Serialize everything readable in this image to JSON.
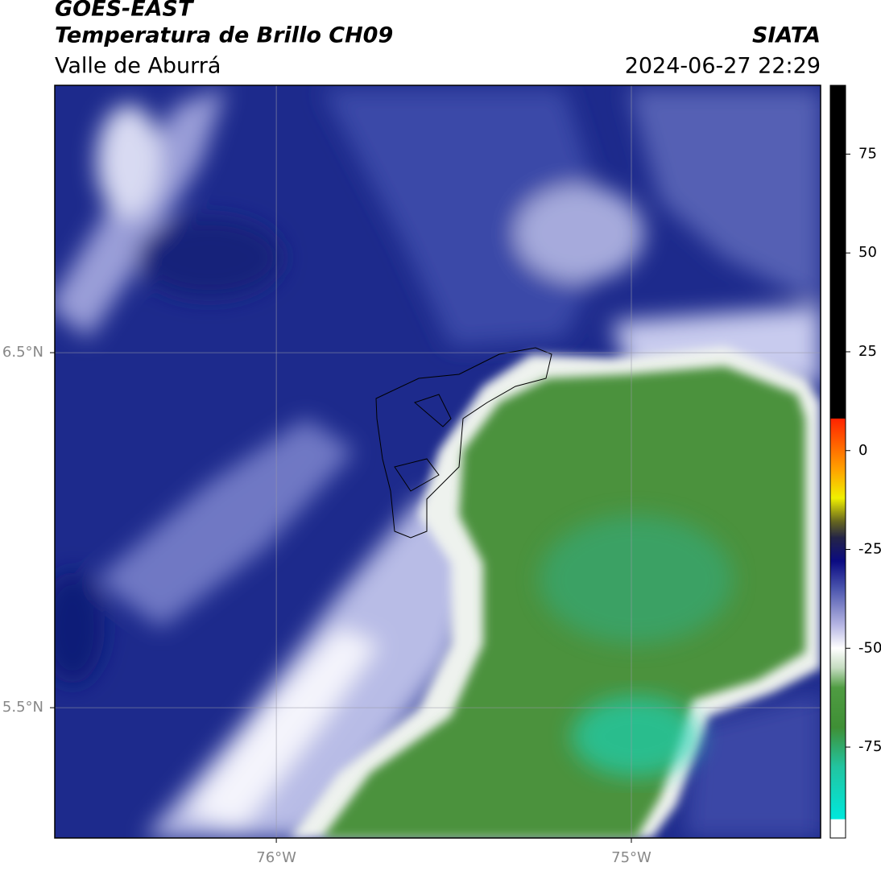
{
  "header": {
    "title": "GOES-EAST",
    "subtitle": "Temperatura de Brillo CH09",
    "region": "Valle de Aburrá",
    "agency": "SIATA",
    "datetime": "2024-06-27 22:29"
  },
  "map": {
    "xlim": [
      -76.624,
      -74.467
    ],
    "ylim": [
      5.133,
      7.253
    ],
    "xticks": [
      {
        "value": -76,
        "label": "76°W"
      },
      {
        "value": -75,
        "label": "75°W"
      }
    ],
    "yticks": [
      {
        "value": 6.5,
        "label": "6.5°N"
      },
      {
        "value": 5.5,
        "label": "5.5°N"
      }
    ],
    "grid": true
  },
  "colorbar": {
    "lim": [
      -98,
      92.4
    ],
    "ticks": [
      75,
      50,
      25,
      0,
      -25,
      -50,
      -75
    ],
    "stops": [
      {
        "value": -98,
        "color": "#ffffff"
      },
      {
        "value": -93.3,
        "color": "#ffffff"
      },
      {
        "value": -93.2,
        "color": "#00e8dc"
      },
      {
        "value": -80,
        "color": "#22c4a0"
      },
      {
        "value": -70,
        "color": "#3f8f35"
      },
      {
        "value": -60,
        "color": "#4f9c42"
      },
      {
        "value": -55,
        "color": "#c4dcc0"
      },
      {
        "value": -50,
        "color": "#ffffff"
      },
      {
        "value": -44,
        "color": "#b4b4e2"
      },
      {
        "value": -35,
        "color": "#4c56ae"
      },
      {
        "value": -28,
        "color": "#0b0b82"
      },
      {
        "value": -22,
        "color": "#242446"
      },
      {
        "value": -18,
        "color": "#646420"
      },
      {
        "value": -12,
        "color": "#f0f000"
      },
      {
        "value": -5,
        "color": "#ffa400"
      },
      {
        "value": 8,
        "color": "#ff2400"
      },
      {
        "value": 8.2,
        "color": "#000000"
      },
      {
        "value": 92.4,
        "color": "#000000"
      }
    ]
  }
}
